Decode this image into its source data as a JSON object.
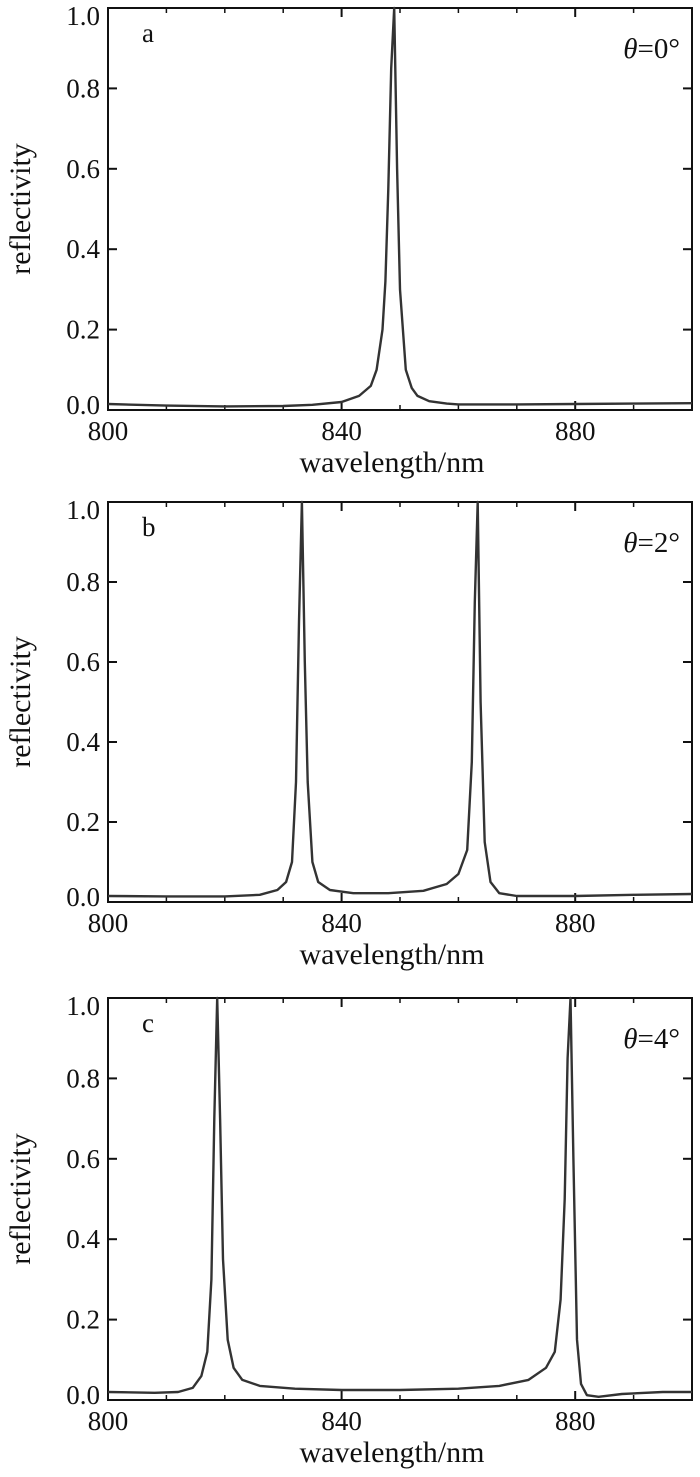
{
  "chart_data": [
    {
      "type": "line",
      "panel_label": "a",
      "annotation": "θ=0°",
      "annotation_symbol": "θ",
      "annotation_value": "=0°",
      "xlabel": "wavelength/nm",
      "ylabel": "reflectivity",
      "xlim": [
        800,
        900
      ],
      "ylim": [
        0,
        1.0
      ],
      "x_ticks": [
        800,
        840,
        880
      ],
      "x_tick_labels": [
        "800",
        "840",
        "880"
      ],
      "y_ticks": [
        0.0,
        0.2,
        0.4,
        0.6,
        0.8,
        1.0
      ],
      "y_tick_labels": [
        "0.0",
        "0.2",
        "0.4",
        "0.6",
        "0.8",
        "1.0"
      ],
      "grid": false,
      "series": [
        {
          "color": "#333333",
          "x": [
            800,
            810,
            820,
            830,
            835,
            840,
            843,
            845,
            846,
            847,
            847.5,
            848,
            848.5,
            849,
            849.5,
            850,
            851,
            852,
            853,
            855,
            858,
            860,
            865,
            870,
            880,
            890,
            900
          ],
          "y": [
            0.015,
            0.011,
            0.009,
            0.01,
            0.013,
            0.02,
            0.035,
            0.06,
            0.1,
            0.2,
            0.32,
            0.55,
            0.85,
            1.0,
            0.6,
            0.3,
            0.1,
            0.055,
            0.035,
            0.022,
            0.016,
            0.014,
            0.014,
            0.014,
            0.015,
            0.016,
            0.017
          ]
        }
      ]
    },
    {
      "type": "line",
      "panel_label": "b",
      "annotation": "θ=2°",
      "annotation_symbol": "θ",
      "annotation_value": "=2°",
      "xlabel": "wavelength/nm",
      "ylabel": "reflectivity",
      "xlim": [
        800,
        900
      ],
      "ylim": [
        0,
        1.0
      ],
      "x_ticks": [
        800,
        840,
        880
      ],
      "x_tick_labels": [
        "800",
        "840",
        "880"
      ],
      "y_ticks": [
        0.0,
        0.2,
        0.4,
        0.6,
        0.8,
        1.0
      ],
      "y_tick_labels": [
        "0.0",
        "0.2",
        "0.4",
        "0.6",
        "0.8",
        "1.0"
      ],
      "grid": false,
      "series": [
        {
          "color": "#333333",
          "x": [
            800,
            810,
            820,
            826,
            829,
            830.5,
            831.5,
            832.2,
            832.7,
            833.2,
            833.7,
            834.2,
            835,
            836,
            838,
            842,
            848,
            854,
            858,
            860,
            861.5,
            862.3,
            862.8,
            863.3,
            863.8,
            864.5,
            865.5,
            867,
            870,
            880,
            890,
            900
          ],
          "y": [
            0.015,
            0.014,
            0.014,
            0.018,
            0.03,
            0.05,
            0.1,
            0.3,
            0.7,
            1.0,
            0.6,
            0.3,
            0.1,
            0.05,
            0.03,
            0.022,
            0.022,
            0.028,
            0.045,
            0.07,
            0.13,
            0.35,
            0.75,
            1.0,
            0.5,
            0.15,
            0.05,
            0.022,
            0.015,
            0.015,
            0.018,
            0.02
          ]
        }
      ]
    },
    {
      "type": "line",
      "panel_label": "c",
      "annotation": "θ=4°",
      "annotation_symbol": "θ",
      "annotation_value": "=4°",
      "xlabel": "wavelength/nm",
      "ylabel": "reflectivity",
      "xlim": [
        800,
        900
      ],
      "ylim": [
        0,
        1.0
      ],
      "x_ticks": [
        800,
        840,
        880
      ],
      "x_tick_labels": [
        "800",
        "840",
        "880"
      ],
      "y_ticks": [
        0.0,
        0.2,
        0.4,
        0.6,
        0.8,
        1.0
      ],
      "y_tick_labels": [
        "0.0",
        "0.2",
        "0.4",
        "0.6",
        "0.8",
        "1.0"
      ],
      "grid": false,
      "series": [
        {
          "color": "#333333",
          "x": [
            800,
            808,
            812,
            814.5,
            816,
            817,
            817.7,
            818.2,
            818.7,
            819.2,
            819.7,
            820.5,
            821.5,
            823,
            826,
            832,
            840,
            850,
            860,
            867,
            872,
            875,
            876.5,
            877.5,
            878.2,
            878.7,
            879.2,
            879.7,
            880.3,
            881,
            882,
            884,
            888,
            895,
            900
          ],
          "y": [
            0.02,
            0.018,
            0.02,
            0.03,
            0.06,
            0.12,
            0.3,
            0.7,
            1.0,
            0.7,
            0.35,
            0.15,
            0.08,
            0.05,
            0.035,
            0.028,
            0.025,
            0.025,
            0.028,
            0.035,
            0.05,
            0.08,
            0.12,
            0.25,
            0.5,
            0.85,
            1.0,
            0.6,
            0.15,
            0.04,
            0.012,
            0.008,
            0.015,
            0.02,
            0.02
          ]
        }
      ]
    }
  ]
}
